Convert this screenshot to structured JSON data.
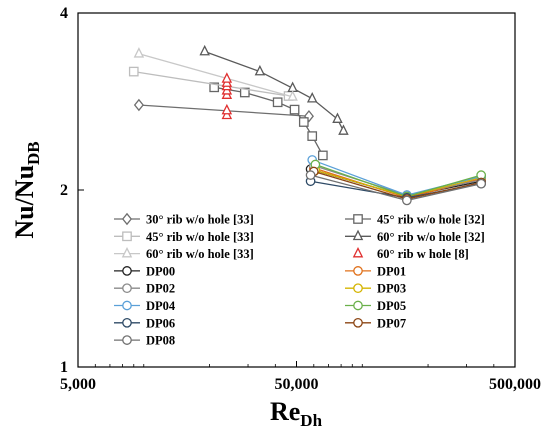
{
  "chart_data": {
    "type": "scatter",
    "xscale": "log",
    "yscale": "log",
    "xlim": [
      5000,
      500000
    ],
    "ylim": [
      1,
      4
    ],
    "xticks": [
      "5,000",
      "50,000",
      "500,000"
    ],
    "yticks": [
      "1",
      "2",
      "4"
    ],
    "xlabel": {
      "main": "Re",
      "sub": "Dh"
    },
    "ylabel": {
      "main": "Nu/Nu",
      "sub": "DB"
    },
    "legend_position": "lower-left",
    "series": [
      {
        "name": "30° rib w/o hole [33]",
        "marker": "diamond",
        "color": "#6e6e6e",
        "line": true,
        "x": [
          9500,
          57000
        ],
        "y": [
          2.79,
          2.67
        ]
      },
      {
        "name": "45° rib w/o hole [32]",
        "marker": "square",
        "color": "#666666",
        "line": true,
        "x": [
          21000,
          29000,
          41000,
          49000,
          54000,
          59000,
          66000
        ],
        "y": [
          2.99,
          2.93,
          2.82,
          2.74,
          2.61,
          2.47,
          2.29
        ]
      },
      {
        "name": "45° rib w/o hole [33]",
        "marker": "square",
        "color": "#bdbdbd",
        "line": true,
        "x": [
          9000,
          46000
        ],
        "y": [
          3.18,
          2.89
        ]
      },
      {
        "name": "60° rib w/o hole [32]",
        "marker": "triangle",
        "color": "#5a5a5a",
        "line": true,
        "x": [
          19000,
          34000,
          48000,
          59000,
          77000,
          82000
        ],
        "y": [
          3.44,
          3.18,
          2.98,
          2.86,
          2.64,
          2.52
        ]
      },
      {
        "name": "60° rib w/o hole [33]",
        "marker": "triangle",
        "color": "#c8c8c8",
        "line": true,
        "x": [
          9500,
          48000
        ],
        "y": [
          3.41,
          2.88
        ]
      },
      {
        "name": "60° rib w hole [8]",
        "marker": "triangle",
        "color": "#e03030",
        "line": false,
        "x": [
          24000,
          24000,
          24000,
          24000,
          24000,
          24000,
          24000
        ],
        "y": [
          2.9,
          2.95,
          3.0,
          3.04,
          3.09,
          2.68,
          2.73
        ]
      },
      {
        "name": "DP00",
        "marker": "circle",
        "color": "#222222",
        "line": true,
        "x": [
          58000,
          160000,
          350000
        ],
        "y": [
          2.17,
          1.95,
          2.07
        ]
      },
      {
        "name": "DP01",
        "marker": "circle",
        "color": "#e0701a",
        "line": true,
        "x": [
          60000,
          160000,
          350000
        ],
        "y": [
          2.18,
          1.94,
          2.09
        ]
      },
      {
        "name": "DP02",
        "marker": "circle",
        "color": "#8a8a8a",
        "line": true,
        "x": [
          60000,
          160000,
          350000
        ],
        "y": [
          2.2,
          1.96,
          2.08
        ]
      },
      {
        "name": "DP03",
        "marker": "circle",
        "color": "#d4b400",
        "line": true,
        "x": [
          61000,
          160000,
          350000
        ],
        "y": [
          2.16,
          1.95,
          2.1
        ]
      },
      {
        "name": "DP04",
        "marker": "circle",
        "color": "#5aa0d8",
        "line": true,
        "x": [
          59000,
          160000,
          350000
        ],
        "y": [
          2.25,
          1.96,
          2.11
        ]
      },
      {
        "name": "DP05",
        "marker": "circle",
        "color": "#6ab04a",
        "line": true,
        "x": [
          61000,
          160000,
          350000
        ],
        "y": [
          2.21,
          1.95,
          2.12
        ]
      },
      {
        "name": "DP06",
        "marker": "circle",
        "color": "#2e4a66",
        "line": true,
        "x": [
          58000,
          160000,
          350000
        ],
        "y": [
          2.07,
          1.94,
          2.05
        ]
      },
      {
        "name": "DP07",
        "marker": "circle",
        "color": "#8b4513",
        "line": true,
        "x": [
          60000,
          160000,
          350000
        ],
        "y": [
          2.15,
          1.93,
          2.06
        ]
      },
      {
        "name": "DP08",
        "marker": "circle",
        "color": "#707070",
        "line": true,
        "x": [
          58000,
          160000,
          350000
        ],
        "y": [
          2.12,
          1.92,
          2.05
        ]
      }
    ]
  }
}
